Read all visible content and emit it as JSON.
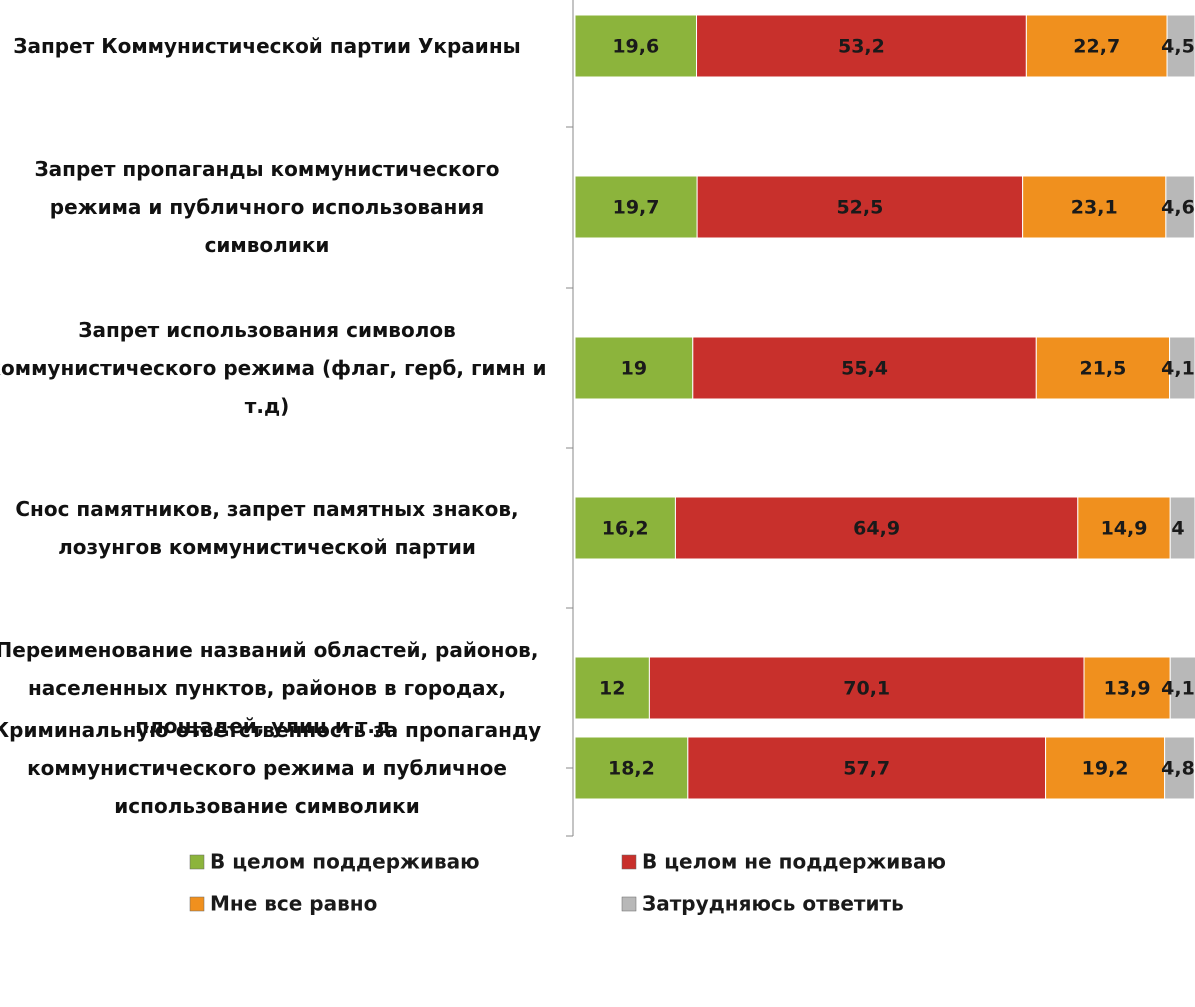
{
  "chart_data": {
    "type": "stacked-barh",
    "categories": [
      "Запрет Коммунистической партии Украины",
      "Запрет пропаганды коммунистического режима и публичного использования символики",
      "Запрет использования символов коммунистического режима (флаг, герб, гимн и т.д)",
      "Снос памятников, запрет памятных знаков, лозунгов коммунистической партии",
      "Переименование названий областей, районов, населенных пунктов, районов в городах, площадей, улиц и т.д.",
      "Криминальную ответственность за пропаганду коммунистического режима и публичное использование символики"
    ],
    "series": [
      {
        "name": "В целом поддерживаю",
        "color": "#8cb43c",
        "values": [
          19.6,
          19.7,
          19,
          16.2,
          12,
          18.2
        ],
        "value_labels": [
          "19,6",
          "19,7",
          "19",
          "16,2",
          "12",
          "18,2"
        ]
      },
      {
        "name": "В целом не поддерживаю",
        "color": "#c8302c",
        "values": [
          53.2,
          52.5,
          55.4,
          64.9,
          70.1,
          57.7
        ],
        "value_labels": [
          "53,2",
          "52,5",
          "55,4",
          "64,9",
          "70,1",
          "57,7"
        ]
      },
      {
        "name": "Мне все равно",
        "color": "#f0901e",
        "values": [
          22.7,
          23.1,
          21.5,
          14.9,
          13.9,
          19.2
        ],
        "value_labels": [
          "22,7",
          "23,1",
          "21,5",
          "14,9",
          "13,9",
          "19,2"
        ]
      },
      {
        "name": "Затрудняюсь ответить",
        "color": "#b8b8b8",
        "values": [
          4.5,
          4.6,
          4.1,
          4,
          4.1,
          4.8
        ],
        "value_labels": [
          "4,5",
          "4,6",
          "4,1",
          "4",
          "4,1",
          "4,8"
        ]
      }
    ],
    "xlim": [
      0,
      100
    ]
  }
}
